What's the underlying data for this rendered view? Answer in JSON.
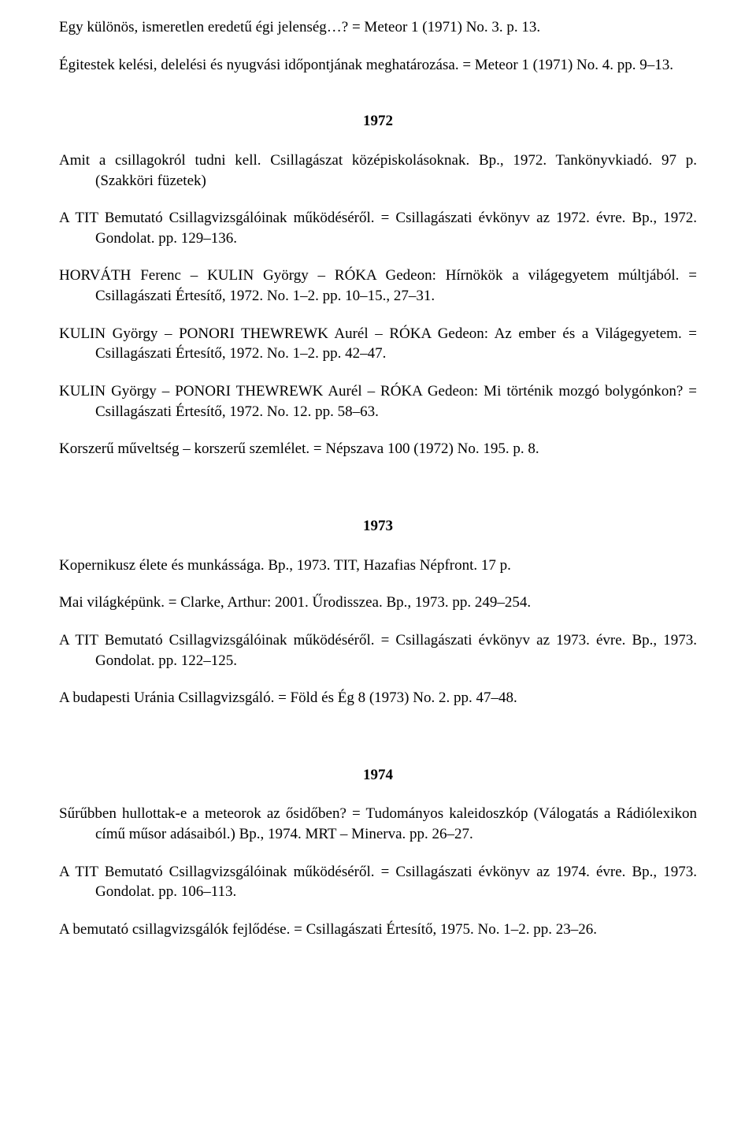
{
  "intro_entries": [
    "Egy különös, ismeretlen eredetű égi jelenség…? = Meteor 1 (1971) No. 3. p. 13.",
    "Égitestek kelési, delelési és nyugvási időpontjának meghatározása. = Meteor 1 (1971) No. 4. pp. 9–13."
  ],
  "sections": [
    {
      "year": "1972",
      "entries": [
        "Amit a csillagokról tudni kell. Csillagászat középiskolásoknak. Bp., 1972. Tankönyvkiadó. 97 p. (Szakköri füzetek)",
        "A TIT Bemutató Csillagvizsgálóinak működéséről. = Csillagászati évkönyv az 1972. évre. Bp., 1972. Gondolat. pp. 129–136.",
        "HORVÁTH Ferenc – KULIN György – RÓKA Gedeon: Hírnökök a világegyetem múltjából. = Csillagászati Értesítő, 1972. No. 1–2. pp. 10–15., 27–31.",
        "KULIN György – PONORI THEWREWK Aurél – RÓKA Gedeon: Az ember és a Világegyetem. = Csillagászati Értesítő, 1972. No. 1–2. pp. 42–47.",
        "KULIN György – PONORI THEWREWK Aurél – RÓKA Gedeon: Mi történik mozgó bolygónkon? = Csillagászati Értesítő, 1972. No. 12. pp. 58–63.",
        "Korszerű műveltség – korszerű szemlélet. = Népszava 100 (1972) No. 195. p. 8."
      ]
    },
    {
      "year": "1973",
      "entries": [
        "Kopernikusz élete és munkássága. Bp., 1973. TIT, Hazafias Népfront. 17 p.",
        "Mai világképünk. = Clarke, Arthur: 2001. Űrodisszea. Bp., 1973. pp. 249–254.",
        "A TIT Bemutató Csillagvizsgálóinak működéséről. = Csillagászati évkönyv az 1973. évre. Bp., 1973. Gondolat. pp. 122–125.",
        "A budapesti Uránia Csillagvizsgáló. = Föld és Ég 8 (1973) No. 2. pp. 47–48."
      ]
    },
    {
      "year": "1974",
      "entries": [
        "Sűrűbben hullottak-e a meteorok az ősidőben? = Tudományos kaleidoszkóp (Válogatás a Rádiólexikon című műsor adásaiból.) Bp., 1974. MRT – Minerva. pp. 26–27.",
        "A TIT Bemutató Csillagvizsgálóinak működéséről. = Csillagászati évkönyv az 1974. évre. Bp., 1973. Gondolat. pp. 106–113.",
        "A bemutató csillagvizsgálók fejlődése. = Csillagászati Értesítő, 1975. No. 1–2. pp. 23–26."
      ]
    }
  ]
}
